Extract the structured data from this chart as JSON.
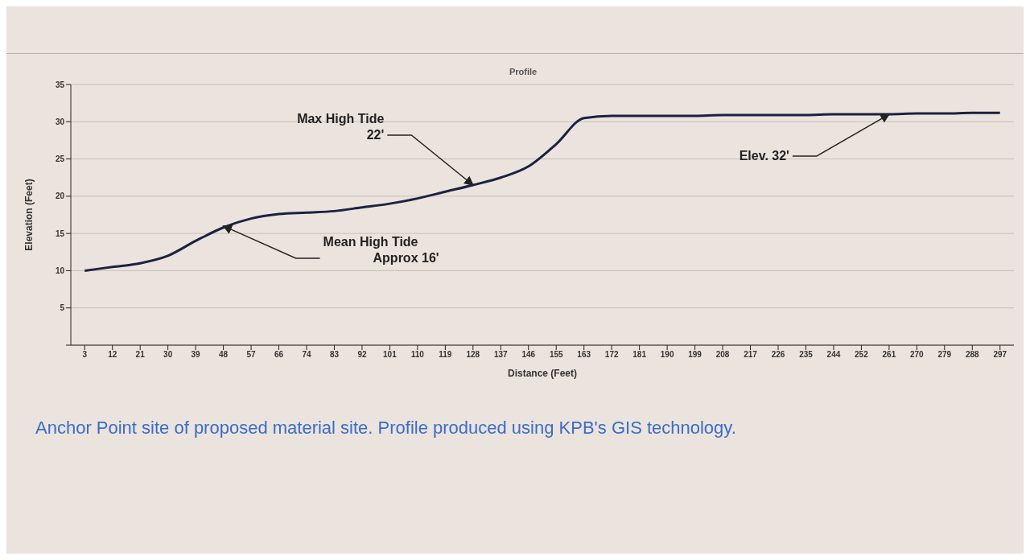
{
  "chart_data": {
    "type": "line",
    "title": "Profile",
    "xlabel": "Distance (Feet)",
    "ylabel": "Elevation (Feet)",
    "categories": [
      "3",
      "12",
      "21",
      "30",
      "39",
      "48",
      "57",
      "66",
      "74",
      "83",
      "92",
      "101",
      "110",
      "119",
      "128",
      "137",
      "146",
      "155",
      "163",
      "172",
      "181",
      "190",
      "199",
      "208",
      "217",
      "226",
      "235",
      "244",
      "252",
      "261",
      "270",
      "279",
      "288",
      "297"
    ],
    "series": [
      {
        "color": "#1c2140",
        "values": [
          10,
          10.5,
          11,
          12,
          14,
          15.8,
          17,
          17.6,
          17.8,
          18,
          18.5,
          19,
          19.7,
          20.6,
          21.5,
          22.5,
          24,
          27,
          30.5,
          30.8,
          30.8,
          30.8,
          30.8,
          30.9,
          30.9,
          30.9,
          30.9,
          31,
          31,
          31,
          31.1,
          31.1,
          31.2,
          31.2
        ]
      }
    ],
    "ylim": [
      0,
      35
    ],
    "yticks": [
      {
        "value": 0,
        "label": null
      },
      5,
      10,
      15,
      20,
      25,
      30,
      35
    ],
    "grid": "y",
    "legend": false,
    "marker": "none",
    "line_style": "solid",
    "annotations": [
      {
        "text": "Max High Tide\n22'",
        "x": "128",
        "y": 21.5
      },
      {
        "text": "Mean High Tide\nApprox 16'",
        "x": "48",
        "y": 16
      },
      {
        "text": "Elev. 32'",
        "x": "261",
        "y": 31
      },
      "Anchor Point site of proposed material site.  Profile produced using KPB's GIS technology."
    ]
  }
}
